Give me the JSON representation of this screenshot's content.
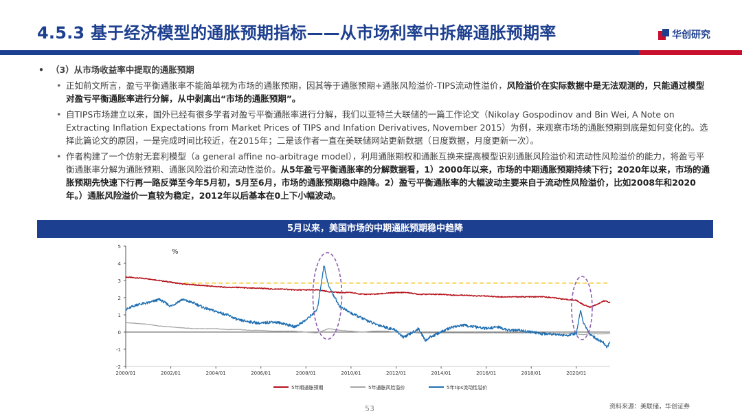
{
  "header": {
    "title": "4.5.3 基于经济模型的通胀预期指标——从市场利率中拆解通胀预期率",
    "logo_text": "华创研究"
  },
  "content": {
    "section_dot": "•",
    "section_title": "（3）从市场收益率中提取的通胀预期",
    "bullet_dot": "•",
    "p1_normal": "正如前文所言，盈亏平衡通胀率不能简单视为市场的通胀预期，因其等于通胀预期+通胀风险溢价-TIPS流动性溢价，",
    "p1_bold": "风险溢价在实际数据中是无法观测的，只能通过模型对盈亏平衡通胀率进行分解，从中剥离出“市场的通胀预期”。",
    "p2": "自TIPS市场建立以来，国外已经有很多学者对盈亏平衡通胀率进行分解，我们以亚特兰大联储的一篇工作论文（Nikolay Gospodinov and Bin Wei, A Note on Extracting Inflation Expectations from Market Prices of TIPS and Infation Derivatives, November 2015）为例，来观察市场的通胀预期到底是如何变化的。选择此篇论文的原因，一是完成时间比较近，在2015年；二是该作者一直在美联储网站更新数据（日度数据，月度更新一次）。",
    "p3_normal": "作者构建了一个仿射无套利模型（a general affine no-arbitrage model），利用通胀期权和通胀互换来提高模型识别通胀风险溢价和流动性风险溢价的能力，将盈亏平衡通胀率分解为通胀预期、通胀风险溢价和流动性溢价。",
    "p3_bold": "从5年盈亏平衡通胀率的分解数据看，1）2000年以来，市场的中期通胀预期持续下行；2020年以来，市场的通胀预期先快速下行再一路反弹至今年5月初，5月至6月，市场的通胀预期稳中趋降。2）盈亏平衡通胀率的大幅波动主要来自于流动性风险溢价，比如2008年和2020年。）通胀风险溢价一直较为稳定，2012年以后基本在0上下小幅波动。"
  },
  "chart_title": "5月以来，美国市场的中期通胀预期稳中趋降",
  "colors": {
    "expectation": "#b5121b",
    "risk_premium": "#a6a6a6",
    "liquidity": "#1f6fb2",
    "reference": "#f5c518",
    "highlight": "#8e5fb0"
  },
  "chart_data": {
    "type": "line",
    "ylabel": "%",
    "ylim": [
      -2,
      5
    ],
    "yticks": [
      "5",
      "4",
      "3",
      "2",
      "1",
      "0",
      "-1",
      "-2"
    ],
    "xlim": [
      2000.0,
      2021.5
    ],
    "xticks": [
      "2000/01",
      "2002/01",
      "2004/01",
      "2006/01",
      "2008/01",
      "2010/01",
      "2012/01",
      "2014/01",
      "2016/01",
      "2018/01",
      "2020/01"
    ],
    "reference_line": 2.85,
    "highlight_periods": [
      "2008/2009",
      "2020"
    ],
    "series": [
      {
        "name": "5年期通胀预期",
        "color_key": "expectation",
        "points": [
          [
            2000.0,
            3.2
          ],
          [
            2000.5,
            3.15
          ],
          [
            2001.0,
            3.1
          ],
          [
            2001.5,
            3.0
          ],
          [
            2002.0,
            2.9
          ],
          [
            2002.5,
            2.8
          ],
          [
            2003.0,
            2.75
          ],
          [
            2003.5,
            2.7
          ],
          [
            2004.0,
            2.65
          ],
          [
            2004.5,
            2.6
          ],
          [
            2005.0,
            2.6
          ],
          [
            2005.5,
            2.55
          ],
          [
            2006.0,
            2.55
          ],
          [
            2006.5,
            2.5
          ],
          [
            2007.0,
            2.5
          ],
          [
            2007.5,
            2.45
          ],
          [
            2008.0,
            2.45
          ],
          [
            2008.5,
            2.45
          ],
          [
            2008.8,
            2.4
          ],
          [
            2009.0,
            2.35
          ],
          [
            2009.5,
            2.3
          ],
          [
            2010.0,
            2.3
          ],
          [
            2010.5,
            2.2
          ],
          [
            2011.0,
            2.2
          ],
          [
            2011.5,
            2.25
          ],
          [
            2012.0,
            2.3
          ],
          [
            2012.5,
            2.3
          ],
          [
            2013.0,
            2.2
          ],
          [
            2013.5,
            2.2
          ],
          [
            2014.0,
            2.2
          ],
          [
            2014.5,
            2.15
          ],
          [
            2015.0,
            2.15
          ],
          [
            2015.5,
            2.1
          ],
          [
            2016.0,
            2.1
          ],
          [
            2016.5,
            2.05
          ],
          [
            2017.0,
            2.05
          ],
          [
            2017.5,
            2.05
          ],
          [
            2018.0,
            2.05
          ],
          [
            2018.5,
            2.05
          ],
          [
            2019.0,
            2.0
          ],
          [
            2019.5,
            1.9
          ],
          [
            2020.0,
            1.85
          ],
          [
            2020.3,
            1.6
          ],
          [
            2020.6,
            1.45
          ],
          [
            2020.9,
            1.6
          ],
          [
            2021.2,
            1.8
          ],
          [
            2021.35,
            1.8
          ],
          [
            2021.5,
            1.7
          ]
        ]
      },
      {
        "name": "5年通胀风险溢价",
        "color_key": "risk_premium",
        "points": [
          [
            2000.0,
            0.55
          ],
          [
            2000.5,
            0.5
          ],
          [
            2001.0,
            0.45
          ],
          [
            2001.5,
            0.35
          ],
          [
            2002.0,
            0.3
          ],
          [
            2002.5,
            0.25
          ],
          [
            2003.0,
            0.2
          ],
          [
            2003.5,
            0.2
          ],
          [
            2004.0,
            0.2
          ],
          [
            2004.5,
            0.15
          ],
          [
            2005.0,
            0.15
          ],
          [
            2005.5,
            0.1
          ],
          [
            2006.0,
            0.1
          ],
          [
            2006.5,
            0.05
          ],
          [
            2007.0,
            0.05
          ],
          [
            2007.5,
            0.05
          ],
          [
            2008.0,
            0.0
          ],
          [
            2008.5,
            -0.05
          ],
          [
            2008.8,
            0.1
          ],
          [
            2009.0,
            0.2
          ],
          [
            2009.5,
            0.1
          ],
          [
            2010.0,
            0.05
          ],
          [
            2010.5,
            0.0
          ],
          [
            2011.0,
            0.05
          ],
          [
            2011.5,
            0.05
          ],
          [
            2012.0,
            0.0
          ],
          [
            2012.5,
            0.0
          ],
          [
            2013.0,
            -0.05
          ],
          [
            2013.5,
            -0.05
          ],
          [
            2014.0,
            -0.05
          ],
          [
            2014.5,
            -0.05
          ],
          [
            2015.0,
            -0.05
          ],
          [
            2015.5,
            -0.05
          ],
          [
            2016.0,
            -0.05
          ],
          [
            2016.5,
            -0.05
          ],
          [
            2017.0,
            -0.05
          ],
          [
            2017.5,
            -0.05
          ],
          [
            2018.0,
            -0.05
          ],
          [
            2018.5,
            -0.05
          ],
          [
            2019.0,
            -0.1
          ],
          [
            2019.5,
            -0.1
          ],
          [
            2020.0,
            -0.1
          ],
          [
            2020.3,
            -0.15
          ],
          [
            2020.6,
            -0.1
          ],
          [
            2020.9,
            -0.1
          ],
          [
            2021.2,
            -0.1
          ],
          [
            2021.35,
            -0.1
          ],
          [
            2021.5,
            -0.1
          ]
        ]
      },
      {
        "name": "5年tips流动性溢价",
        "color_key": "liquidity",
        "points": [
          [
            2000.0,
            1.3
          ],
          [
            2000.5,
            1.6
          ],
          [
            2001.0,
            1.7
          ],
          [
            2001.5,
            1.9
          ],
          [
            2002.0,
            1.5
          ],
          [
            2002.5,
            1.9
          ],
          [
            2003.0,
            1.7
          ],
          [
            2003.5,
            1.4
          ],
          [
            2004.0,
            1.2
          ],
          [
            2004.5,
            1.0
          ],
          [
            2005.0,
            0.7
          ],
          [
            2005.5,
            0.6
          ],
          [
            2006.0,
            0.5
          ],
          [
            2006.5,
            0.6
          ],
          [
            2007.0,
            0.5
          ],
          [
            2007.5,
            0.3
          ],
          [
            2008.0,
            0.7
          ],
          [
            2008.5,
            1.3
          ],
          [
            2008.8,
            3.9
          ],
          [
            2009.0,
            2.7
          ],
          [
            2009.2,
            2.2
          ],
          [
            2009.5,
            1.5
          ],
          [
            2010.0,
            1.1
          ],
          [
            2010.5,
            0.8
          ],
          [
            2011.0,
            0.5
          ],
          [
            2011.5,
            0.3
          ],
          [
            2012.0,
            0.1
          ],
          [
            2012.3,
            -0.3
          ],
          [
            2012.5,
            -0.2
          ],
          [
            2013.0,
            0.2
          ],
          [
            2013.3,
            -0.5
          ],
          [
            2013.5,
            -0.3
          ],
          [
            2014.0,
            0.0
          ],
          [
            2014.5,
            0.3
          ],
          [
            2015.0,
            0.4
          ],
          [
            2015.5,
            0.3
          ],
          [
            2016.0,
            0.2
          ],
          [
            2016.5,
            0.3
          ],
          [
            2017.0,
            0.1
          ],
          [
            2017.5,
            0.1
          ],
          [
            2018.0,
            0.0
          ],
          [
            2018.5,
            -0.1
          ],
          [
            2019.0,
            -0.1
          ],
          [
            2019.5,
            -0.2
          ],
          [
            2020.0,
            -0.1
          ],
          [
            2020.2,
            1.3
          ],
          [
            2020.3,
            0.6
          ],
          [
            2020.6,
            -0.1
          ],
          [
            2020.9,
            -0.4
          ],
          [
            2021.2,
            -0.6
          ],
          [
            2021.35,
            -0.9
          ],
          [
            2021.5,
            -0.6
          ]
        ]
      }
    ]
  },
  "footer": {
    "page_number": "53",
    "source": "资料来源：美联储，华创证券"
  }
}
